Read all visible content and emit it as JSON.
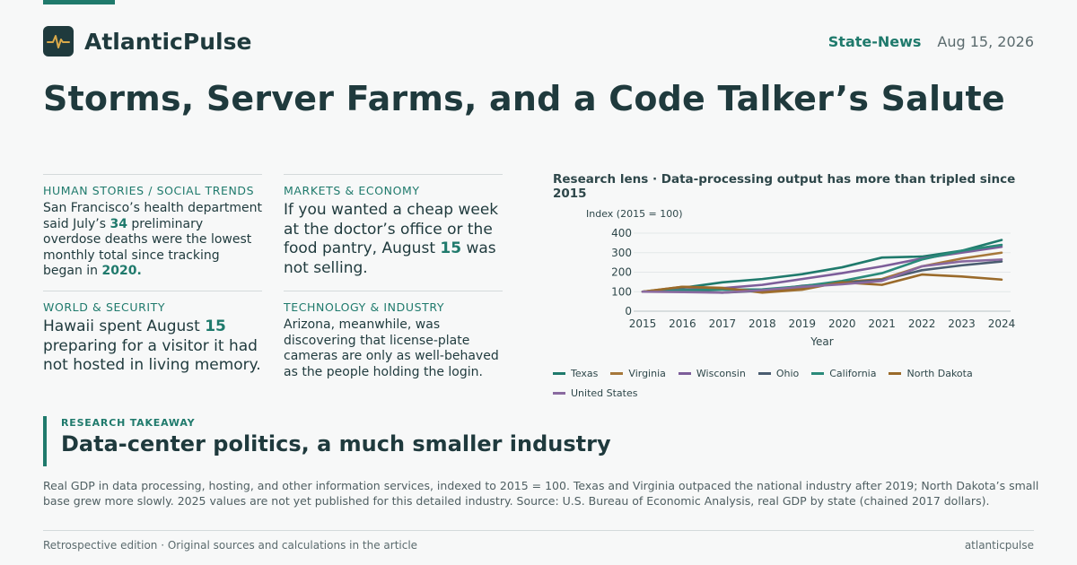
{
  "brand": {
    "name": "AtlanticPulse",
    "icon": "pulse-icon"
  },
  "header": {
    "section": "State-News",
    "date": "Aug 15, 2026"
  },
  "headline": "Storms, Server Farms, and a Code Talker’s Salute",
  "stories": [
    {
      "kicker": "HUMAN STORIES / SOCIAL TRENDS",
      "parts": [
        "San Francisco’s health department said July’s ",
        "34",
        " preliminary overdose deaths were the lowest monthly total since tracking began in ",
        "2020."
      ]
    },
    {
      "kicker": "MARKETS & ECONOMY",
      "parts": [
        "If you wanted a cheap week at the doctor’s office or the food pantry, August ",
        "15",
        " was not selling."
      ]
    },
    {
      "kicker": "WORLD & SECURITY",
      "parts": [
        "Hawaii spent August ",
        "15",
        " preparing for a visitor it had not hosted in living memory."
      ]
    },
    {
      "kicker": "TECHNOLOGY & INDUSTRY",
      "parts": [
        "Arizona, meanwhile, was discovering that license-plate cameras are only as well-behaved as the people holding the login."
      ]
    }
  ],
  "takeaway": {
    "kicker": "RESEARCH TAKEAWAY",
    "title": "Data-center politics, a much smaller industry"
  },
  "note": "Real GDP in data processing, hosting, and other information services, indexed to 2015 = 100. Texas and Virginia outpaced the national industry after 2019; North Dakota’s small base grew more slowly. 2025 values are not yet published for this detailed industry. Source: U.S. Bureau of Economic Analysis, real GDP by state (chained 2017 dollars).",
  "footer": {
    "left": "Retrospective edition · Original sources and calculations in the article",
    "right": "atlanticpulse"
  },
  "chart_data": {
    "type": "line",
    "title": "Research lens · Data-processing output has more than tripled since 2015",
    "ylabel": "Index (2015 = 100)",
    "xlabel": "Year",
    "x": [
      2015,
      2016,
      2017,
      2018,
      2019,
      2020,
      2021,
      2022,
      2023,
      2024
    ],
    "yticks": [
      0,
      100,
      200,
      300,
      400
    ],
    "ylim": [
      0,
      400
    ],
    "grid": true,
    "legend": "bottom",
    "series": [
      {
        "name": "Texas",
        "color": "#1f7a6c",
        "values": [
          100,
          120,
          148,
          165,
          190,
          225,
          275,
          280,
          310,
          365
        ]
      },
      {
        "name": "Virginia",
        "color": "#a6783a",
        "values": [
          100,
          125,
          120,
          95,
          110,
          150,
          165,
          230,
          270,
          300
        ]
      },
      {
        "name": "Wisconsin",
        "color": "#7d5e9a",
        "values": [
          100,
          110,
          118,
          135,
          165,
          195,
          230,
          270,
          300,
          330
        ]
      },
      {
        "name": "Ohio",
        "color": "#4a5d70",
        "values": [
          100,
          102,
          95,
          105,
          130,
          145,
          160,
          210,
          235,
          255
        ]
      },
      {
        "name": "California",
        "color": "#2a8a7a",
        "values": [
          100,
          108,
          110,
          112,
          128,
          155,
          195,
          265,
          310,
          340
        ]
      },
      {
        "name": "North Dakota",
        "color": "#9a6a2a",
        "values": [
          100,
          125,
          118,
          100,
          115,
          148,
          135,
          188,
          178,
          162
        ]
      },
      {
        "name": "United States",
        "color": "#8a6aa0",
        "values": [
          100,
          98,
          95,
          108,
          125,
          138,
          155,
          230,
          255,
          265
        ]
      }
    ]
  }
}
